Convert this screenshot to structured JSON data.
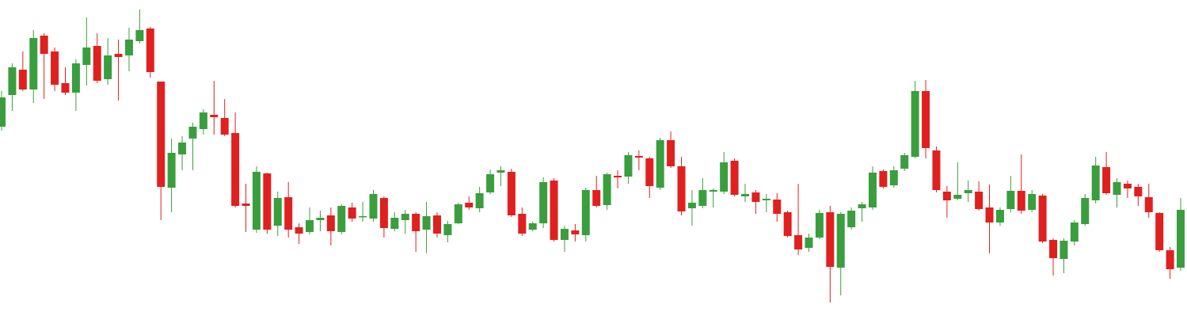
{
  "chart_data": {
    "type": "candlestick",
    "up_color": "#3a9e3e",
    "down_color": "#e0201f",
    "ylim": [
      0,
      418
    ],
    "open": [
      258,
      298,
      330,
      305,
      373,
      353,
      313,
      301,
      336,
      360,
      318,
      350,
      348,
      366,
      382,
      315,
      181,
      223,
      243,
      255,
      273,
      269,
      250,
      161,
      128,
      199,
      133,
      169,
      131,
      125,
      140,
      146,
      125,
      156,
      145,
      142,
      168,
      129,
      140,
      148,
      128,
      146,
      121,
      136,
      162,
      155,
      175,
      200,
      201,
      148,
      128,
      136,
      190,
      115,
      127,
      121,
      178,
      159,
      196,
      195,
      221,
      218,
      181,
      241,
      208,
      155,
      158,
      176,
      176,
      215,
      170,
      175,
      165,
      166,
      150,
      121,
      105,
      118,
      150,
      80,
      131,
      155,
      156,
      202,
      184,
      205,
      220,
      303,
      228,
      176,
      167,
      174,
      176,
      156,
      137,
      154,
      177,
      153,
      171,
      115,
      91,
      113,
      135,
      165,
      207,
      172,
      186,
      182,
      169,
      149,
      102,
      80
    ],
    "high": [
      303,
      338,
      353,
      380,
      376,
      358,
      333,
      343,
      396,
      376,
      370,
      368,
      383,
      406,
      384,
      315,
      243,
      246,
      263,
      280,
      316,
      293,
      276,
      186,
      208,
      200,
      176,
      188,
      136,
      156,
      152,
      156,
      160,
      162,
      163,
      178,
      170,
      150,
      153,
      150,
      163,
      150,
      139,
      162,
      170,
      182,
      204,
      208,
      205,
      156,
      138,
      194,
      193,
      133,
      135,
      181,
      196,
      200,
      203,
      226,
      228,
      220,
      244,
      252,
      220,
      178,
      193,
      180,
      226,
      218,
      186,
      178,
      173,
      174,
      152,
      186,
      123,
      153,
      158,
      150,
      156,
      163,
      208,
      204,
      208,
      225,
      316,
      317,
      233,
      183,
      213,
      190,
      189,
      185,
      156,
      196,
      223,
      178,
      173,
      117,
      117,
      140,
      173,
      220,
      226,
      193,
      190,
      186,
      186,
      150,
      106,
      168
    ],
    "low": [
      253,
      278,
      303,
      288,
      293,
      303,
      298,
      278,
      310,
      313,
      311,
      291,
      328,
      363,
      320,
      140,
      150,
      203,
      203,
      248,
      248,
      246,
      156,
      125,
      124,
      123,
      120,
      118,
      110,
      122,
      126,
      108,
      122,
      138,
      138,
      138,
      118,
      126,
      123,
      100,
      98,
      118,
      112,
      135,
      153,
      150,
      173,
      183,
      144,
      120,
      126,
      130,
      113,
      100,
      113,
      113,
      156,
      153,
      180,
      186,
      203,
      168,
      178,
      206,
      146,
      133,
      155,
      156,
      173,
      170,
      163,
      148,
      150,
      138,
      118,
      96,
      100,
      116,
      36,
      45,
      128,
      138,
      153,
      180,
      181,
      202,
      218,
      218,
      175,
      143,
      165,
      163,
      152,
      98,
      133,
      150,
      148,
      150,
      111,
      70,
      73,
      108,
      133,
      161,
      172,
      156,
      168,
      158,
      143,
      100,
      66,
      76
    ],
    "close": [
      295,
      333,
      305,
      370,
      350,
      311,
      301,
      338,
      358,
      316,
      348,
      346,
      368,
      380,
      327,
      182,
      225,
      238,
      258,
      276,
      270,
      248,
      158,
      158,
      201,
      128,
      168,
      128,
      123,
      140,
      143,
      126,
      158,
      142,
      145,
      173,
      130,
      143,
      148,
      126,
      145,
      123,
      135,
      160,
      156,
      174,
      198,
      203,
      146,
      123,
      136,
      188,
      115,
      129,
      122,
      178,
      158,
      198,
      194,
      222,
      219,
      183,
      241,
      208,
      151,
      162,
      178,
      178,
      213,
      172,
      173,
      163,
      167,
      148,
      120,
      103,
      118,
      149,
      81,
      148,
      152,
      160,
      200,
      182,
      203,
      222,
      303,
      231,
      178,
      165,
      172,
      178,
      154,
      137,
      153,
      177,
      152,
      173,
      113,
      92,
      114,
      137,
      168,
      209,
      174,
      188,
      180,
      170,
      150,
      102,
      78,
      153
    ]
  }
}
